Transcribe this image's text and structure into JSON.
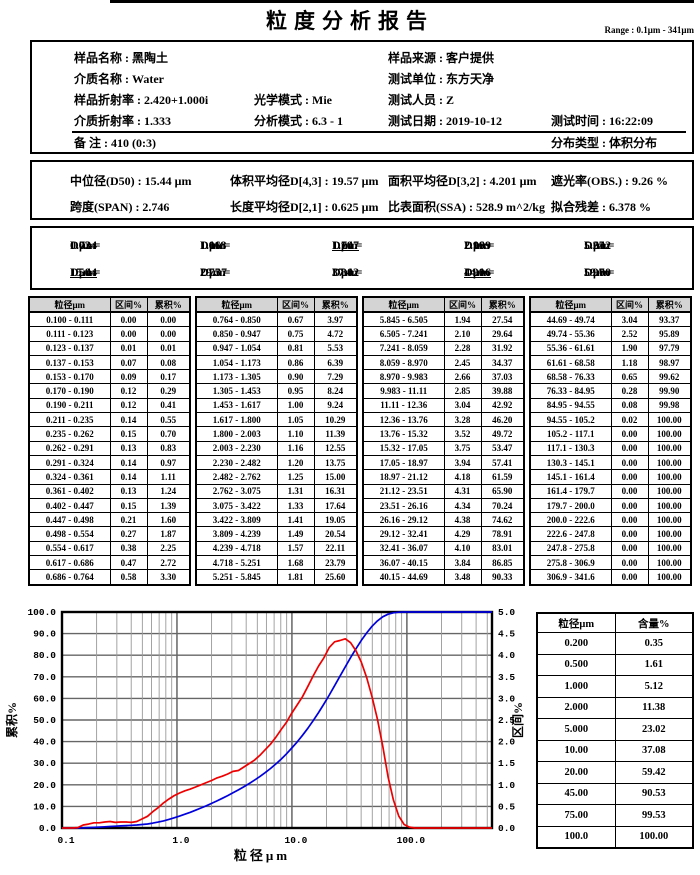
{
  "report": {
    "title": "粒度分析报告",
    "range_label": "Range : 0.1μm - 341μm",
    "info": {
      "items": [
        "样品名称 : 黑陶土",
        "样品来源 : 客户提供",
        "介质名称 : Water",
        "测试单位 : 东方天净",
        "样品折射率 : 2.420+1.000i",
        "光学模式 : Mie",
        "测试人员 : Z",
        "介质折射率 : 1.333",
        "分析模式 : 6.3 - 1",
        "测试日期 : 2019-10-12",
        "测试时间 : 16:22:09",
        "备  注 :    410  (0:3)",
        "分布类型 : 体积分布"
      ]
    },
    "summary": {
      "rows": [
        [
          "中位径(D50) : 15.44   μm",
          "体积平均径D[4,3] : 19.57   μm",
          "面积平均径D[3,2] : 4.201   μm",
          "遮光率(OBS.) : 9.26   %"
        ],
        [
          "跨度(SPAN) : 2.746",
          "长度平均径D[2,1] : 0.625   μm",
          "比表面积(SSA) : 528.9 m^2/kg",
          "拟合残差 : 6.378  %"
        ]
      ]
    },
    "dvalues": [
      {
        "name": "D03",
        "value": "0.724",
        "unit": "μm",
        "underline": false
      },
      {
        "name": "D06",
        "value": "1.118",
        "unit": "μm",
        "underline": false
      },
      {
        "name": "D10",
        "value": "1.747",
        "unit": "μm",
        "underline": true
      },
      {
        "name": "D16",
        "value": "2.999",
        "unit": "μm",
        "underline": false
      },
      {
        "name": "D25",
        "value": "5.642",
        "unit": "μm",
        "underline": false
      },
      {
        "name": "D50",
        "value": "15.44",
        "unit": "μm",
        "underline": true
      },
      {
        "name": "D75",
        "value": "29.37",
        "unit": "μm",
        "underline": false
      },
      {
        "name": "D84",
        "value": "37.02",
        "unit": "μm",
        "underline": false
      },
      {
        "name": "D90",
        "value": "44.16",
        "unit": "μm",
        "underline": true
      },
      {
        "name": "D97",
        "value": "59.00",
        "unit": "μm",
        "underline": false
      }
    ],
    "distribution_table": {
      "headers": [
        "粒径μm",
        "区间%",
        "累积%"
      ],
      "groups": [
        [
          [
            "0.100 - 0.111",
            "0.00",
            "0.00"
          ],
          [
            "0.111 - 0.123",
            "0.00",
            "0.00"
          ],
          [
            "0.123 - 0.137",
            "0.01",
            "0.01"
          ],
          [
            "0.137 - 0.153",
            "0.07",
            "0.08"
          ],
          [
            "0.153 - 0.170",
            "0.09",
            "0.17"
          ],
          [
            "0.170 - 0.190",
            "0.12",
            "0.29"
          ],
          [
            "0.190 - 0.211",
            "0.12",
            "0.41"
          ],
          [
            "0.211 - 0.235",
            "0.14",
            "0.55"
          ],
          [
            "0.235 - 0.262",
            "0.15",
            "0.70"
          ],
          [
            "0.262 - 0.291",
            "0.13",
            "0.83"
          ],
          [
            "0.291 - 0.324",
            "0.14",
            "0.97"
          ],
          [
            "0.324 - 0.361",
            "0.14",
            "1.11"
          ],
          [
            "0.361 - 0.402",
            "0.13",
            "1.24"
          ],
          [
            "0.402 - 0.447",
            "0.15",
            "1.39"
          ],
          [
            "0.447 - 0.498",
            "0.21",
            "1.60"
          ],
          [
            "0.498 - 0.554",
            "0.27",
            "1.87"
          ],
          [
            "0.554 - 0.617",
            "0.38",
            "2.25"
          ],
          [
            "0.617 - 0.686",
            "0.47",
            "2.72"
          ],
          [
            "0.686 - 0.764",
            "0.58",
            "3.30"
          ]
        ],
        [
          [
            "0.764 - 0.850",
            "0.67",
            "3.97"
          ],
          [
            "0.850 - 0.947",
            "0.75",
            "4.72"
          ],
          [
            "0.947 - 1.054",
            "0.81",
            "5.53"
          ],
          [
            "1.054 - 1.173",
            "0.86",
            "6.39"
          ],
          [
            "1.173 - 1.305",
            "0.90",
            "7.29"
          ],
          [
            "1.305 - 1.453",
            "0.95",
            "8.24"
          ],
          [
            "1.453 - 1.617",
            "1.00",
            "9.24"
          ],
          [
            "1.617 - 1.800",
            "1.05",
            "10.29"
          ],
          [
            "1.800 - 2.003",
            "1.10",
            "11.39"
          ],
          [
            "2.003 - 2.230",
            "1.16",
            "12.55"
          ],
          [
            "2.230 - 2.482",
            "1.20",
            "13.75"
          ],
          [
            "2.482 - 2.762",
            "1.25",
            "15.00"
          ],
          [
            "2.762 - 3.075",
            "1.31",
            "16.31"
          ],
          [
            "3.075 - 3.422",
            "1.33",
            "17.64"
          ],
          [
            "3.422 - 3.809",
            "1.41",
            "19.05"
          ],
          [
            "3.809 - 4.239",
            "1.49",
            "20.54"
          ],
          [
            "4.239 - 4.718",
            "1.57",
            "22.11"
          ],
          [
            "4.718 - 5.251",
            "1.68",
            "23.79"
          ],
          [
            "5.251 - 5.845",
            "1.81",
            "25.60"
          ]
        ],
        [
          [
            "5.845 - 6.505",
            "1.94",
            "27.54"
          ],
          [
            "6.505 - 7.241",
            "2.10",
            "29.64"
          ],
          [
            "7.241 - 8.059",
            "2.28",
            "31.92"
          ],
          [
            "8.059 - 8.970",
            "2.45",
            "34.37"
          ],
          [
            "8.970 - 9.983",
            "2.66",
            "37.03"
          ],
          [
            "9.983 - 11.11",
            "2.85",
            "39.88"
          ],
          [
            "11.11 - 12.36",
            "3.04",
            "42.92"
          ],
          [
            "12.36 - 13.76",
            "3.28",
            "46.20"
          ],
          [
            "13.76 - 15.32",
            "3.52",
            "49.72"
          ],
          [
            "15.32 - 17.05",
            "3.75",
            "53.47"
          ],
          [
            "17.05 - 18.97",
            "3.94",
            "57.41"
          ],
          [
            "18.97 - 21.12",
            "4.18",
            "61.59"
          ],
          [
            "21.12 - 23.51",
            "4.31",
            "65.90"
          ],
          [
            "23.51 - 26.16",
            "4.34",
            "70.24"
          ],
          [
            "26.16 - 29.12",
            "4.38",
            "74.62"
          ],
          [
            "29.12 - 32.41",
            "4.29",
            "78.91"
          ],
          [
            "32.41 - 36.07",
            "4.10",
            "83.01"
          ],
          [
            "36.07 - 40.15",
            "3.84",
            "86.85"
          ],
          [
            "40.15 - 44.69",
            "3.48",
            "90.33"
          ]
        ],
        [
          [
            "44.69 - 49.74",
            "3.04",
            "93.37"
          ],
          [
            "49.74 - 55.36",
            "2.52",
            "95.89"
          ],
          [
            "55.36 - 61.61",
            "1.90",
            "97.79"
          ],
          [
            "61.61 - 68.58",
            "1.18",
            "98.97"
          ],
          [
            "68.58 - 76.33",
            "0.65",
            "99.62"
          ],
          [
            "76.33 - 84.95",
            "0.28",
            "99.90"
          ],
          [
            "84.95 - 94.55",
            "0.08",
            "99.98"
          ],
          [
            "94.55 - 105.2",
            "0.02",
            "100.00"
          ],
          [
            "105.2 - 117.1",
            "0.00",
            "100.00"
          ],
          [
            "117.1 - 130.3",
            "0.00",
            "100.00"
          ],
          [
            "130.3 - 145.1",
            "0.00",
            "100.00"
          ],
          [
            "145.1 - 161.4",
            "0.00",
            "100.00"
          ],
          [
            "161.4 - 179.7",
            "0.00",
            "100.00"
          ],
          [
            "179.7 - 200.0",
            "0.00",
            "100.00"
          ],
          [
            "200.0 - 222.6",
            "0.00",
            "100.00"
          ],
          [
            "222.6 - 247.8",
            "0.00",
            "100.00"
          ],
          [
            "247.8 - 275.8",
            "0.00",
            "100.00"
          ],
          [
            "275.8 - 306.9",
            "0.00",
            "100.00"
          ],
          [
            "306.9 - 341.6",
            "0.00",
            "100.00"
          ]
        ]
      ]
    },
    "content_table": {
      "headers": [
        "粒径μm",
        "含量%"
      ],
      "rows": [
        [
          "0.200",
          "0.35"
        ],
        [
          "0.500",
          "1.61"
        ],
        [
          "1.000",
          "5.12"
        ],
        [
          "2.000",
          "11.38"
        ],
        [
          "5.000",
          "23.02"
        ],
        [
          "10.00",
          "37.08"
        ],
        [
          "20.00",
          "59.42"
        ],
        [
          "45.00",
          "90.53"
        ],
        [
          "75.00",
          "99.53"
        ],
        [
          "100.0",
          "100.00"
        ]
      ]
    },
    "chart_data": {
      "type": "line",
      "x_scale": "log",
      "xlabel": "粒径μm",
      "ylabel_left": "累积%",
      "ylabel_right": "区间%",
      "xlim": [
        0.1,
        550
      ],
      "ylim_left": [
        0,
        100
      ],
      "ylim_right": [
        0,
        5
      ],
      "x_tick_values": [
        0.1,
        1,
        10,
        100
      ],
      "x_tick_labels": [
        "0.1",
        "1.0",
        "10.0",
        "100.0"
      ],
      "ytick_step_left": 10,
      "ytick_step_right": 0.5,
      "grid": true,
      "x": [
        0.111,
        0.123,
        0.137,
        0.153,
        0.17,
        0.19,
        0.211,
        0.235,
        0.262,
        0.291,
        0.324,
        0.361,
        0.402,
        0.447,
        0.498,
        0.554,
        0.617,
        0.686,
        0.764,
        0.85,
        0.947,
        1.054,
        1.173,
        1.305,
        1.453,
        1.617,
        1.8,
        2.003,
        2.23,
        2.482,
        2.762,
        3.075,
        3.422,
        3.809,
        4.239,
        4.718,
        5.251,
        5.845,
        6.505,
        7.241,
        8.059,
        8.97,
        9.983,
        11.11,
        12.36,
        13.76,
        15.32,
        17.05,
        18.97,
        21.12,
        23.51,
        26.16,
        29.12,
        32.41,
        36.07,
        40.15,
        44.69,
        49.74,
        55.36,
        61.61,
        68.58,
        76.33,
        84.95,
        94.55,
        105.2,
        117.1,
        130.3,
        145.1,
        161.4,
        179.7,
        200.0,
        222.6,
        247.8,
        275.8,
        306.9,
        341.6
      ],
      "series": [
        {
          "name": "累积%",
          "axis": "left",
          "color": "#0000dd",
          "y": [
            0.0,
            0.0,
            0.01,
            0.08,
            0.17,
            0.29,
            0.41,
            0.55,
            0.7,
            0.83,
            0.97,
            1.11,
            1.24,
            1.39,
            1.6,
            1.87,
            2.25,
            2.72,
            3.3,
            3.97,
            4.72,
            5.53,
            6.39,
            7.29,
            8.24,
            9.24,
            10.29,
            11.39,
            12.55,
            13.75,
            15.0,
            16.31,
            17.64,
            19.05,
            20.54,
            22.11,
            23.79,
            25.6,
            27.54,
            29.64,
            31.92,
            34.37,
            37.03,
            39.88,
            42.92,
            46.2,
            49.72,
            53.47,
            57.41,
            61.59,
            65.9,
            70.24,
            74.62,
            78.91,
            83.01,
            86.85,
            90.33,
            93.37,
            95.89,
            97.79,
            98.97,
            99.62,
            99.9,
            99.98,
            100.0,
            100.0,
            100.0,
            100.0,
            100.0,
            100.0,
            100.0,
            100.0,
            100.0,
            100.0,
            100.0,
            100.0
          ]
        },
        {
          "name": "区间%",
          "axis": "right",
          "color": "#ee0000",
          "y": [
            0.0,
            0.0,
            0.01,
            0.07,
            0.09,
            0.12,
            0.12,
            0.14,
            0.15,
            0.13,
            0.14,
            0.14,
            0.13,
            0.15,
            0.21,
            0.27,
            0.38,
            0.47,
            0.58,
            0.67,
            0.75,
            0.81,
            0.86,
            0.9,
            0.95,
            1.0,
            1.05,
            1.1,
            1.16,
            1.2,
            1.25,
            1.31,
            1.33,
            1.41,
            1.49,
            1.57,
            1.68,
            1.81,
            1.94,
            2.1,
            2.28,
            2.45,
            2.66,
            2.85,
            3.04,
            3.28,
            3.52,
            3.75,
            3.94,
            4.18,
            4.31,
            4.34,
            4.38,
            4.29,
            4.1,
            3.84,
            3.48,
            3.04,
            2.52,
            1.9,
            1.18,
            0.65,
            0.28,
            0.08,
            0.02,
            0.0,
            0.0,
            0.0,
            0.0,
            0.0,
            0.0,
            0.0,
            0.0,
            0.0,
            0.0,
            0.0
          ]
        }
      ],
      "colors": {
        "grid_major": "#666666",
        "grid_minor": "#999999",
        "frame": "#000000"
      }
    }
  }
}
